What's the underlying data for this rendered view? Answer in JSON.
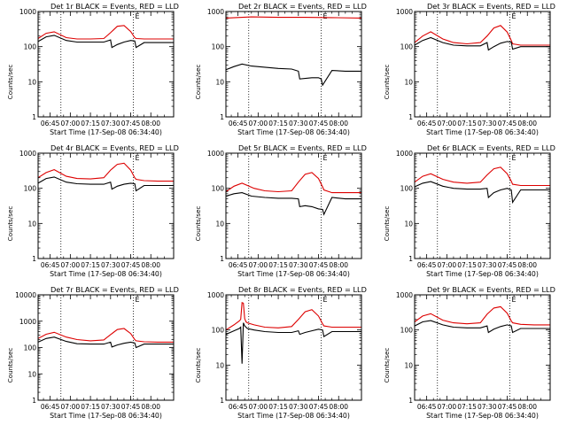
{
  "figure": {
    "colors": {
      "events": "#000000",
      "lld": "#dd0000",
      "axis": "#000000",
      "background": "#ffffff"
    },
    "time_ticks": [
      "06:45",
      "07:00",
      "07:15",
      "07:30",
      "07:45",
      "08:00"
    ],
    "time_tick_values_min": [
      0,
      15,
      30,
      45,
      60,
      75
    ],
    "x_range_min": [
      -9,
      92
    ],
    "markers_min": [
      8,
      62
    ],
    "flag_label": "E",
    "xlabel": "Start Time (17-Sep-08 06:34:40)",
    "ylabel": "Counts/sec"
  },
  "chart_data": [
    {
      "type": "line",
      "title": "Det 1r  BLACK = Events, RED = LLD",
      "y_scale": "log",
      "ylim": [
        1,
        1000
      ],
      "yticks": [
        "1",
        "10",
        "100",
        "1000"
      ],
      "series": [
        {
          "name": "LLD",
          "color": "#dd0000",
          "x": [
            -9,
            -3,
            3,
            12,
            20,
            30,
            40,
            45,
            50,
            55,
            60,
            63,
            64,
            70,
            80,
            92
          ],
          "values": [
            170,
            240,
            265,
            180,
            165,
            165,
            170,
            250,
            380,
            400,
            270,
            180,
            170,
            165,
            165,
            165
          ]
        },
        {
          "name": "Events",
          "color": "#000000",
          "x": [
            -9,
            -3,
            3,
            12,
            20,
            30,
            40,
            45,
            46,
            50,
            55,
            60,
            63,
            64,
            70,
            80,
            92
          ],
          "values": [
            140,
            190,
            210,
            150,
            135,
            135,
            135,
            155,
            95,
            115,
            135,
            150,
            145,
            95,
            130,
            130,
            130
          ]
        }
      ]
    },
    {
      "type": "line",
      "title": "Det 2r  BLACK = Events, RED = LLD",
      "y_scale": "log",
      "ylim": [
        1,
        1000
      ],
      "yticks": [
        "1",
        "10",
        "100",
        "1000"
      ],
      "series": [
        {
          "name": "LLD",
          "color": "#dd0000",
          "x": [
            -9,
            10,
            30,
            50,
            70,
            92
          ],
          "values": [
            650,
            700,
            680,
            680,
            670,
            650
          ]
        },
        {
          "name": "Events",
          "color": "#000000",
          "x": [
            -9,
            -3,
            3,
            10,
            20,
            30,
            40,
            45,
            46,
            55,
            60,
            62,
            63,
            70,
            80,
            92
          ],
          "values": [
            22,
            27,
            32,
            28,
            26,
            24,
            23,
            20,
            12,
            13,
            13,
            12,
            8,
            21,
            20,
            20
          ]
        }
      ]
    },
    {
      "type": "line",
      "title": "Det 3r  BLACK = Events, RED = LLD",
      "y_scale": "log",
      "ylim": [
        1,
        1000
      ],
      "yticks": [
        "1",
        "10",
        "100",
        "1000"
      ],
      "series": [
        {
          "name": "LLD",
          "color": "#dd0000",
          "x": [
            -9,
            -3,
            3,
            12,
            20,
            30,
            40,
            45,
            50,
            55,
            60,
            63,
            64,
            70,
            80,
            92
          ],
          "values": [
            130,
            200,
            265,
            165,
            130,
            120,
            130,
            200,
            340,
            400,
            260,
            150,
            120,
            110,
            110,
            110
          ]
        },
        {
          "name": "Events",
          "color": "#000000",
          "x": [
            -9,
            -3,
            3,
            12,
            20,
            30,
            40,
            45,
            46,
            50,
            55,
            60,
            63,
            64,
            70,
            80,
            92
          ],
          "values": [
            110,
            150,
            180,
            130,
            110,
            105,
            105,
            130,
            80,
            100,
            125,
            140,
            135,
            85,
            100,
            100,
            100
          ]
        }
      ]
    },
    {
      "type": "line",
      "title": "Det 4r  BLACK = Events, RED = LLD",
      "y_scale": "log",
      "ylim": [
        1,
        1000
      ],
      "yticks": [
        "1",
        "10",
        "100",
        "1000"
      ],
      "series": [
        {
          "name": "LLD",
          "color": "#dd0000",
          "x": [
            -9,
            -3,
            3,
            12,
            20,
            30,
            40,
            45,
            50,
            55,
            60,
            63,
            64,
            70,
            80,
            92
          ],
          "values": [
            200,
            280,
            340,
            220,
            190,
            185,
            200,
            330,
            480,
            520,
            330,
            200,
            180,
            165,
            160,
            160
          ]
        },
        {
          "name": "Events",
          "color": "#000000",
          "x": [
            -9,
            -3,
            3,
            12,
            20,
            30,
            40,
            45,
            46,
            50,
            55,
            60,
            63,
            64,
            70,
            80,
            92
          ],
          "values": [
            140,
            190,
            210,
            150,
            135,
            130,
            130,
            150,
            95,
            115,
            130,
            140,
            135,
            85,
            120,
            120,
            120
          ]
        }
      ]
    },
    {
      "type": "line",
      "title": "Det 5r  BLACK = Events, RED = LLD",
      "y_scale": "log",
      "ylim": [
        1,
        1000
      ],
      "yticks": [
        "1",
        "10",
        "100",
        "1000"
      ],
      "series": [
        {
          "name": "LLD",
          "color": "#dd0000",
          "x": [
            -9,
            -3,
            3,
            12,
            20,
            30,
            40,
            45,
            50,
            55,
            60,
            63,
            64,
            70,
            80,
            92
          ],
          "values": [
            80,
            115,
            140,
            100,
            85,
            80,
            85,
            150,
            250,
            280,
            190,
            110,
            90,
            75,
            75,
            75
          ]
        },
        {
          "name": "Events",
          "color": "#000000",
          "x": [
            -9,
            -3,
            3,
            10,
            20,
            30,
            40,
            45,
            46,
            50,
            55,
            60,
            63,
            64,
            70,
            80,
            92
          ],
          "values": [
            60,
            70,
            75,
            60,
            55,
            52,
            52,
            50,
            30,
            32,
            30,
            26,
            25,
            18,
            55,
            50,
            50
          ]
        }
      ]
    },
    {
      "type": "line",
      "title": "Det 6r  BLACK = Events, RED = LLD",
      "y_scale": "log",
      "ylim": [
        1,
        1000
      ],
      "yticks": [
        "1",
        "10",
        "100",
        "1000"
      ],
      "series": [
        {
          "name": "LLD",
          "color": "#dd0000",
          "x": [
            -9,
            -3,
            3,
            12,
            20,
            30,
            40,
            45,
            50,
            55,
            60,
            63,
            64,
            70,
            80,
            92
          ],
          "values": [
            150,
            220,
            260,
            180,
            150,
            140,
            150,
            240,
            360,
            400,
            260,
            160,
            130,
            120,
            120,
            120
          ]
        },
        {
          "name": "Events",
          "color": "#000000",
          "x": [
            -9,
            -3,
            3,
            12,
            20,
            30,
            40,
            45,
            46,
            50,
            55,
            60,
            63,
            64,
            70,
            80,
            92
          ],
          "values": [
            110,
            140,
            155,
            115,
            100,
            95,
            95,
            100,
            55,
            75,
            90,
            100,
            90,
            40,
            90,
            90,
            90
          ]
        }
      ]
    },
    {
      "type": "line",
      "title": "Det 7r  BLACK = Events, RED = LLD",
      "y_scale": "log",
      "ylim": [
        1,
        10000
      ],
      "yticks": [
        "1",
        "10",
        "100",
        "1000",
        "10000"
      ],
      "series": [
        {
          "name": "LLD",
          "color": "#dd0000",
          "x": [
            -9,
            -3,
            3,
            12,
            20,
            30,
            40,
            45,
            50,
            55,
            60,
            63,
            64,
            70,
            80,
            92
          ],
          "values": [
            220,
            320,
            380,
            250,
            200,
            180,
            195,
            310,
            480,
            530,
            340,
            200,
            180,
            165,
            160,
            160
          ]
        },
        {
          "name": "Events",
          "color": "#000000",
          "x": [
            -9,
            -3,
            3,
            12,
            20,
            30,
            40,
            45,
            46,
            50,
            55,
            60,
            63,
            64,
            70,
            80,
            92
          ],
          "values": [
            160,
            220,
            250,
            170,
            140,
            135,
            135,
            160,
            105,
            125,
            145,
            160,
            150,
            100,
            135,
            135,
            135
          ]
        }
      ]
    },
    {
      "type": "line",
      "title": "Det 8r  BLACK = Events, RED = LLD",
      "y_scale": "log",
      "ylim": [
        1,
        1000
      ],
      "yticks": [
        "1",
        "10",
        "100",
        "1000"
      ],
      "series": [
        {
          "name": "LLD",
          "color": "#dd0000",
          "x": [
            -9,
            -3,
            1,
            2,
            3,
            4,
            5,
            6,
            7,
            12,
            20,
            30,
            40,
            45,
            50,
            55,
            60,
            63,
            64,
            70,
            80,
            92
          ],
          "values": [
            100,
            140,
            180,
            200,
            600,
            580,
            210,
            170,
            160,
            140,
            120,
            115,
            125,
            200,
            330,
            380,
            250,
            150,
            130,
            120,
            120,
            120
          ]
        },
        {
          "name": "Events",
          "color": "#000000",
          "x": [
            -9,
            -3,
            1,
            2,
            3,
            4,
            5,
            6,
            7,
            12,
            20,
            30,
            40,
            45,
            46,
            50,
            55,
            60,
            63,
            64,
            70,
            80,
            92
          ],
          "values": [
            75,
            95,
            110,
            120,
            11,
            160,
            130,
            120,
            110,
            100,
            90,
            85,
            85,
            95,
            75,
            85,
            95,
            105,
            100,
            65,
            90,
            90,
            90
          ]
        }
      ]
    },
    {
      "type": "line",
      "title": "Det 9r  BLACK = Events, RED = LLD",
      "y_scale": "log",
      "ylim": [
        1,
        1000
      ],
      "yticks": [
        "1",
        "10",
        "100",
        "1000"
      ],
      "series": [
        {
          "name": "LLD",
          "color": "#dd0000",
          "x": [
            -9,
            -3,
            3,
            12,
            20,
            30,
            40,
            45,
            50,
            55,
            60,
            63,
            64,
            70,
            80,
            92
          ],
          "values": [
            170,
            250,
            290,
            190,
            160,
            150,
            160,
            280,
            420,
            460,
            300,
            180,
            160,
            145,
            140,
            140
          ]
        },
        {
          "name": "Events",
          "color": "#000000",
          "x": [
            -9,
            -3,
            3,
            12,
            20,
            30,
            40,
            45,
            46,
            50,
            55,
            60,
            63,
            64,
            70,
            80,
            92
          ],
          "values": [
            130,
            170,
            185,
            140,
            120,
            115,
            115,
            130,
            85,
            105,
            125,
            140,
            130,
            85,
            110,
            110,
            110
          ]
        }
      ]
    }
  ]
}
